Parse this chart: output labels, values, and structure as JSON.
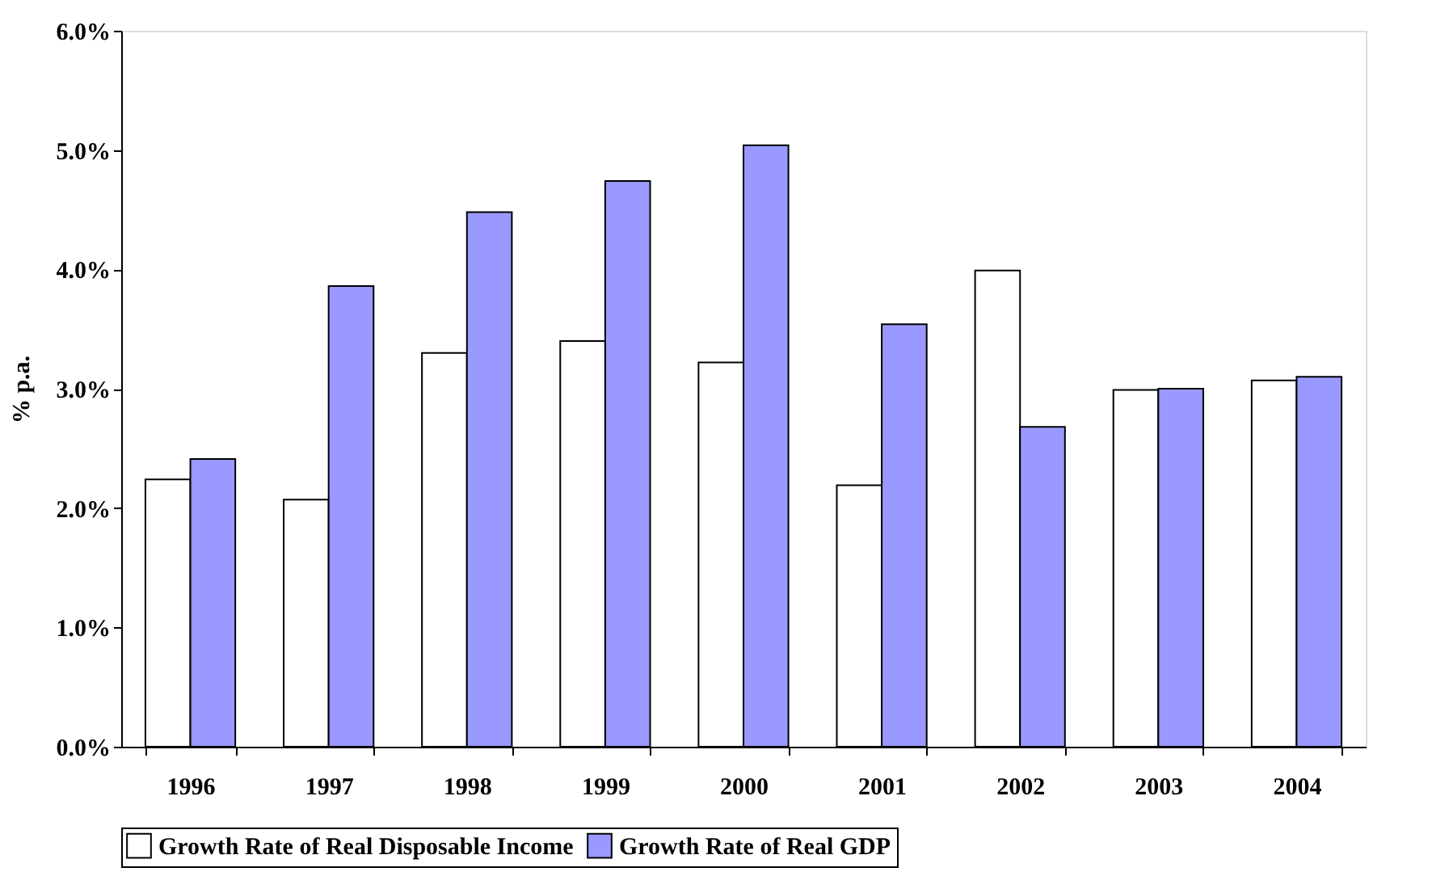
{
  "chart_data": {
    "type": "bar",
    "ylabel": "% p.a.",
    "categories": [
      "1996",
      "1997",
      "1998",
      "1999",
      "2000",
      "2001",
      "2002",
      "2003",
      "2004"
    ],
    "series": [
      {
        "name": "Growth Rate of Real Disposable Income",
        "color": "#ffffff",
        "values": [
          2.24,
          2.07,
          3.3,
          3.4,
          3.22,
          2.19,
          3.99,
          2.99,
          3.07
        ]
      },
      {
        "name": "Growth Rate of Real GDP",
        "color": "#9999ff",
        "values": [
          2.41,
          3.86,
          4.48,
          4.74,
          5.04,
          3.54,
          2.68,
          3.0,
          3.1
        ]
      }
    ],
    "ylim": [
      0,
      6
    ],
    "yticks": [
      {
        "value": 0,
        "label": "0.0%"
      },
      {
        "value": 1,
        "label": "1.0%"
      },
      {
        "value": 2,
        "label": "2.0%"
      },
      {
        "value": 3,
        "label": "3.0%"
      },
      {
        "value": 4,
        "label": "4.0%"
      },
      {
        "value": 5,
        "label": "5.0%"
      },
      {
        "value": 6,
        "label": "6.0%"
      }
    ],
    "grid": false,
    "legend": "bottom"
  }
}
